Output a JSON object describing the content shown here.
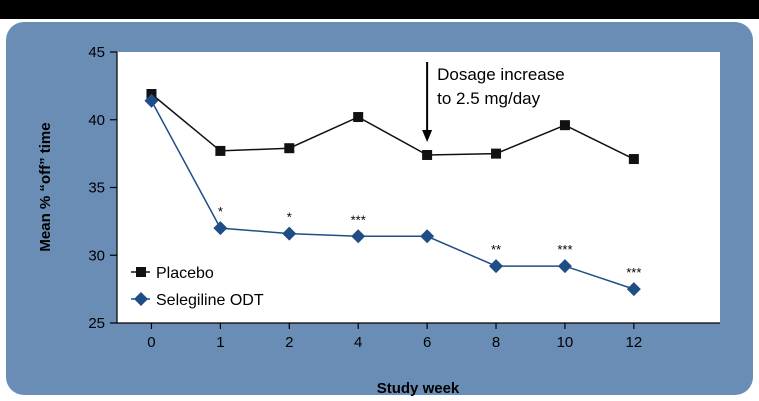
{
  "chart_data": {
    "type": "line",
    "xlabel": "Study week",
    "ylabel": "Mean % “off” time",
    "categories": [
      "0",
      "1",
      "2",
      "4",
      "6",
      "8",
      "10",
      "12"
    ],
    "ylim": [
      25,
      45
    ],
    "yticks": [
      "45",
      "40",
      "35",
      "30",
      "25"
    ],
    "ytick_values": [
      45,
      40,
      35,
      30,
      25
    ],
    "series": [
      {
        "name": "Placebo",
        "marker": "square",
        "color": "#111111",
        "values": [
          41.9,
          37.7,
          37.9,
          40.2,
          37.4,
          37.5,
          39.6,
          37.1
        ]
      },
      {
        "name": "Selegiline ODT",
        "marker": "diamond",
        "color": "#1f4e86",
        "values": [
          41.4,
          32.0,
          31.6,
          31.4,
          31.4,
          29.2,
          29.2,
          27.5
        ]
      }
    ],
    "significance": [
      "",
      "*",
      "*",
      "***",
      "",
      "**",
      "***",
      "***"
    ],
    "annotation": {
      "lines": [
        "Dosage increase",
        "to 2.5 mg/day"
      ],
      "category": "6"
    },
    "legend": {
      "position": "lower-left"
    },
    "grid": false
  },
  "colors": {
    "frame": "#6a8db6",
    "plot_background": "#ffffff",
    "top_bar": "#000000"
  }
}
